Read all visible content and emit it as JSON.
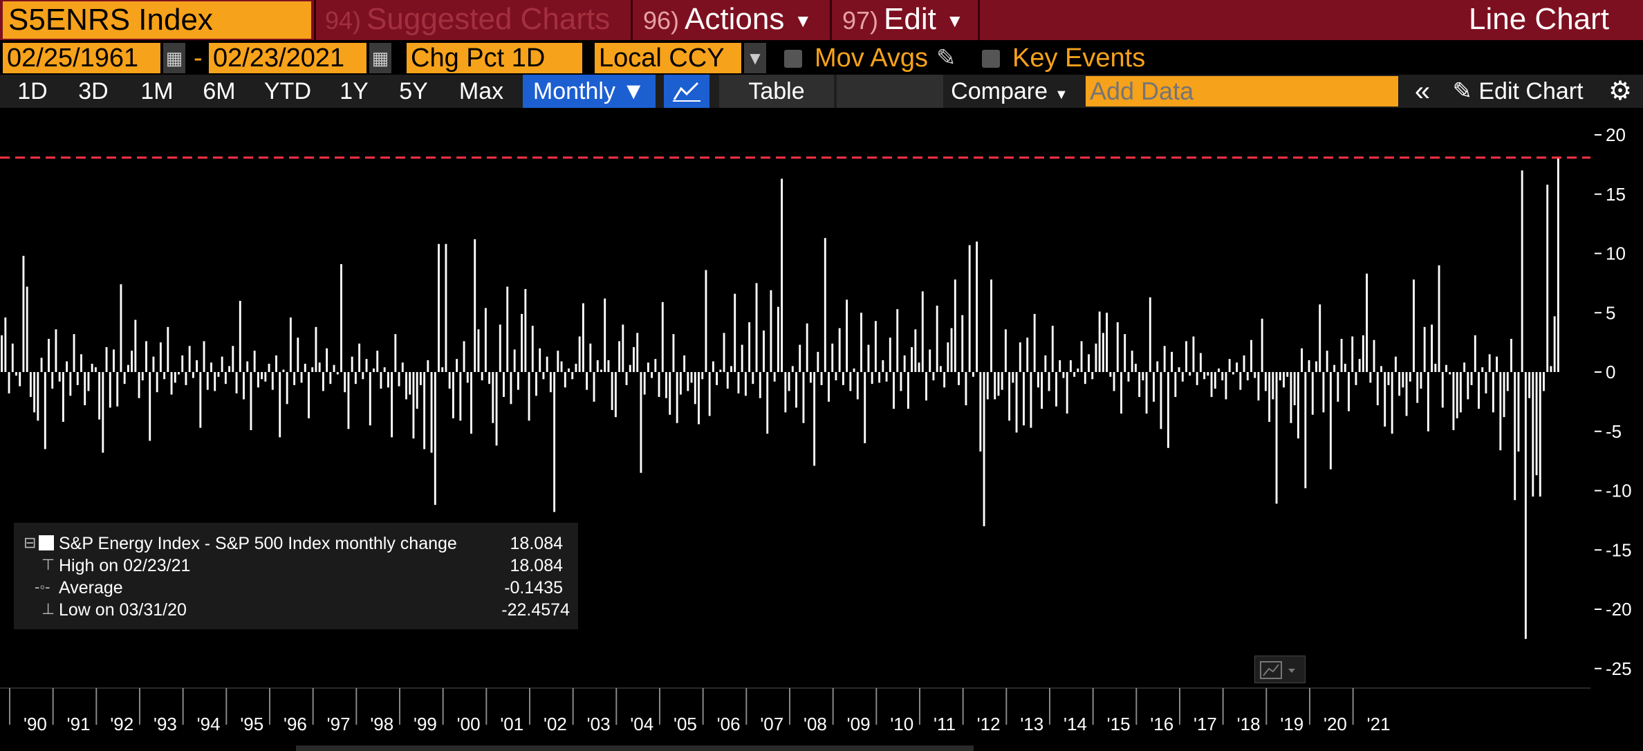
{
  "header": {
    "ticker": "S5ENRS Index",
    "suggested_num": "94)",
    "suggested_label": "Suggested Charts",
    "actions_num": "96)",
    "actions_label": "Actions",
    "edit_num": "97)",
    "edit_label": "Edit",
    "chart_type": "Line Chart"
  },
  "controls": {
    "start_date": "02/25/1961",
    "dash": "-",
    "end_date": "02/23/2021",
    "field": "Chg Pct 1D",
    "currency": "Local CCY",
    "mov_avgs": "Mov Avgs",
    "key_events": "Key Events"
  },
  "toolbar": {
    "ranges": [
      "1D",
      "3D",
      "1M",
      "6M",
      "YTD",
      "1Y",
      "5Y",
      "Max"
    ],
    "period": "Monthly ▼",
    "table": "Table",
    "compare": "Compare",
    "add_data_placeholder": "Add Data",
    "edit_chart": "Edit Chart"
  },
  "legend": {
    "series_name": "S&P Energy Index - S&P 500 Index monthly change",
    "series_value": "18.084",
    "high_label": "High on 02/23/21",
    "high_value": "18.084",
    "avg_label": "Average",
    "avg_value": "-0.1435",
    "low_label": "Low on 03/31/20",
    "low_value": "-22.4574"
  },
  "colors": {
    "accent": "#f7a21b",
    "topbar": "#7d1020",
    "bars": "#ffffff",
    "high_line": "#ff3344",
    "active_button": "#1c5fd1"
  },
  "chart_data": {
    "type": "bar",
    "title": "S&P Energy Index - S&P 500 Index monthly change",
    "ylabel": "",
    "ylim": [
      -25,
      20
    ],
    "yticks": [
      20,
      15,
      10,
      5,
      0,
      -5,
      -10,
      -15,
      -20,
      -25
    ],
    "xlabels": [
      "'90",
      "'91",
      "'92",
      "'93",
      "'94",
      "'95",
      "'96",
      "'97",
      "'98",
      "'99",
      "'00",
      "'01",
      "'02",
      "'03",
      "'04",
      "'05",
      "'06",
      "'07",
      "'08",
      "'09",
      "'10",
      "'11",
      "'12",
      "'13",
      "'14",
      "'15",
      "'16",
      "'17",
      "'18",
      "'19",
      "'20",
      "'21"
    ],
    "start": "1990-01",
    "end": "2021-02",
    "reference_line": 18.084,
    "values": [
      3.1,
      4.6,
      -1.8,
      2.4,
      -0.3,
      -1.2,
      9.8,
      7.2,
      -2.1,
      -3.4,
      -4.1,
      1.2,
      -6.5,
      2.8,
      -1.4,
      3.6,
      -0.8,
      -4.2,
      0.9,
      -2.0,
      3.2,
      -1.1,
      1.5,
      -2.8,
      -1.6,
      0.7,
      0.4,
      -4.0,
      -6.8,
      2.1,
      -3.0,
      1.9,
      -2.9,
      7.4,
      -1.0,
      0.6,
      1.8,
      4.4,
      -2.2,
      -0.7,
      2.6,
      -5.8,
      1.3,
      -1.7,
      2.5,
      -0.6,
      3.8,
      -1.9,
      -0.9,
      -0.2,
      1.4,
      -1.1,
      2.2,
      -0.5,
      1.0,
      -4.7,
      2.6,
      -1.5,
      0.8,
      -1.6,
      -0.4,
      1.3,
      -1.0,
      0.5,
      2.2,
      -1.8,
      6.0,
      -2.3,
      0.9,
      -4.9,
      1.8,
      -1.3,
      -0.6,
      -0.8,
      0.7,
      -1.5,
      1.4,
      -5.5,
      0.2,
      -2.7,
      4.6,
      -1.1,
      2.9,
      -0.9,
      0.7,
      -3.9,
      0.4,
      3.8,
      0.8,
      -1.6,
      2.0,
      -1.0,
      0.6,
      -0.2,
      9.1,
      -1.7,
      -4.8,
      1.3,
      -1.0,
      2.4,
      -0.6,
      1.1,
      -4.5,
      0.3,
      1.8,
      -1.4,
      0.4,
      -1.3,
      -5.5,
      3.2,
      -1.2,
      0.8,
      -2.3,
      -1.9,
      -5.6,
      -3.1,
      -1.1,
      -6.5,
      1.0,
      -6.8,
      -11.2,
      10.8,
      0.4,
      10.8,
      -1.4,
      -3.9,
      1.1,
      -4.1,
      2.6,
      -0.9,
      -5.2,
      11.2,
      3.6,
      -0.7,
      5.4,
      -1.0,
      -4.3,
      -6.2,
      4.0,
      -2.1,
      7.2,
      -2.7,
      1.9,
      -1.5,
      4.9,
      7.0,
      -4.1,
      3.9,
      -2.0,
      2.0,
      -0.6,
      1.3,
      -1.7,
      -11.8,
      1.8,
      0.9,
      -1.3,
      0.3,
      -0.6,
      0.7,
      3.0,
      5.8,
      -1.5,
      2.4,
      -2.5,
      1.0,
      0.2,
      6.2,
      1.0,
      -3.2,
      -3.8,
      2.6,
      4.0,
      -1.1,
      0.6,
      2.1,
      3.3,
      -8.5,
      -1.9,
      0.8,
      -0.5,
      1.1,
      -2.1,
      5.9,
      -2.2,
      -3.6,
      3.2,
      -4.3,
      -1.9,
      1.4,
      -1.6,
      -0.9,
      -2.7,
      -4.4,
      -0.6,
      8.6,
      -3.7,
      0.9,
      -1.1,
      0.2,
      3.3,
      -1.4,
      0.5,
      6.6,
      -1.8,
      2.3,
      -2.0,
      4.2,
      -1.0,
      7.5,
      -2.2,
      3.5,
      -5.2,
      6.9,
      -0.8,
      5.5,
      16.3,
      -3.4,
      -1.6,
      0.5,
      -3.0,
      2.3,
      -4.3,
      4.1,
      -0.9,
      -7.9,
      1.7,
      -1.1,
      11.3,
      -2.5,
      2.4,
      -0.7,
      3.7,
      -1.1,
      6.1,
      -1.6,
      0.3,
      -2.3,
      5.0,
      -6.0,
      2.3,
      -1.0,
      4.3,
      -0.9,
      1.0,
      -0.8,
      2.9,
      -3.1,
      5.3,
      -1.6,
      1.4,
      -3.1,
      2.1,
      3.6,
      0.8,
      6.8,
      -2.4,
      1.9,
      -0.7,
      5.6,
      0.5,
      -1.3,
      2.5,
      3.7,
      7.8,
      -1.1,
      4.8,
      -2.8,
      10.7,
      -0.4,
      11.0,
      -6.7,
      -13.0,
      -2.3,
      7.8,
      -2.3,
      -2.0,
      -1.5,
      3.6,
      -4.1,
      -0.9,
      -5.1,
      2.5,
      -4.5,
      2.9,
      -4.7,
      4.9,
      -1.3,
      -3.1,
      1.4,
      -1.6,
      3.9,
      -2.9,
      1.0,
      -0.5,
      -3.5,
      1.0,
      -0.4,
      0.3,
      2.6,
      -1.0,
      1.5,
      -0.6,
      2.4,
      5.1,
      3.3,
      5.0,
      -0.4,
      -1.6,
      4.2,
      -3.5,
      3.2,
      -0.8,
      1.8,
      0.7,
      -2.1,
      -0.7,
      -3.5,
      6.3,
      -2.5,
      0.9,
      -4.8,
      2.2,
      -6.4,
      1.7,
      -2.1,
      0.4,
      -0.8,
      2.6,
      -0.3,
      3.0,
      -1.1,
      1.6,
      -0.6,
      -0.3,
      -2.1,
      -1.4,
      0.3,
      -0.7,
      -2.3,
      1.1,
      -0.2,
      0.8,
      -1.5,
      1.4,
      -0.7,
      2.7,
      -0.5,
      -2.4,
      4.5,
      -1.6,
      -4.2,
      -2.3,
      -11.1,
      -0.7,
      -1.3,
      -0.4,
      -4.3,
      -2.8,
      -5.6,
      2.0,
      -9.8,
      1.0,
      -3.6,
      0.9,
      5.7,
      -3.4,
      1.8,
      -8.2,
      0.6,
      -2.5,
      2.8,
      0.7,
      -3.3,
      3.0,
      -1.1,
      1.1,
      3.1,
      8.3,
      -0.9,
      2.7,
      -2.8,
      0.5,
      -4.6,
      -1.1,
      -5.2,
      1.3,
      -2.0,
      -1.3,
      -3.7,
      -0.8,
      7.8,
      -2.6,
      -1.4,
      3.8,
      -5.0,
      4.0,
      0.7,
      9.0,
      -3.0,
      0.6,
      -0.2,
      -4.9,
      -3.9,
      -3.4,
      0.8,
      -2.3,
      -1.1,
      3.1,
      -3.1,
      0.4,
      -1.8,
      1.5,
      -3.4,
      1.3,
      -6.6,
      -3.8,
      -1.6,
      2.8,
      -10.8,
      -6.7,
      17.0,
      -22.5,
      -2.2,
      -10.5,
      -8.7,
      -10.5,
      -1.6,
      15.8,
      0.5,
      4.7,
      18.1
    ]
  }
}
